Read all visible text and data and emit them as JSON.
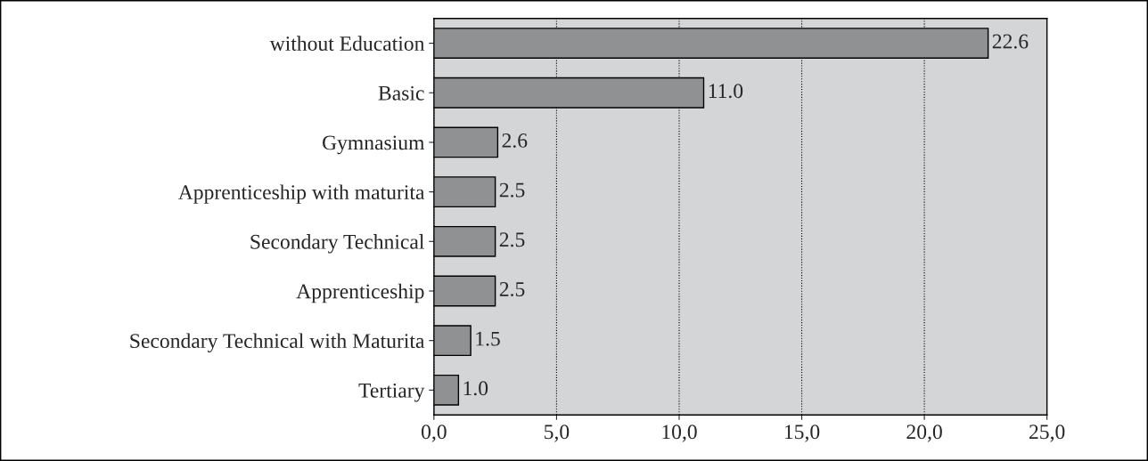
{
  "chart_data": {
    "type": "bar",
    "orientation": "horizontal",
    "categories": [
      "without Education",
      "Basic",
      "Gymnasium",
      "Apprenticeship with maturita",
      "Secondary Technical",
      "Apprenticeship",
      "Secondary Technical with Maturita",
      "Tertiary"
    ],
    "values": [
      22.6,
      11.0,
      2.6,
      2.5,
      2.5,
      2.5,
      1.5,
      1.0
    ],
    "value_labels": [
      "22.6",
      "11.0",
      "2.6",
      "2.5",
      "2.5",
      "2.5",
      "1.5",
      "1.0"
    ],
    "color": "#909193",
    "xlim": [
      0,
      25
    ],
    "xticks": [
      {
        "value": 0,
        "label": "0,0"
      },
      {
        "value": 5,
        "label": "5,0"
      },
      {
        "value": 10,
        "label": "10,0"
      },
      {
        "value": 15,
        "label": "15,0"
      },
      {
        "value": 20,
        "label": "20,0"
      },
      {
        "value": 25,
        "label": "25,0"
      }
    ],
    "grid": "x",
    "legend": false
  }
}
